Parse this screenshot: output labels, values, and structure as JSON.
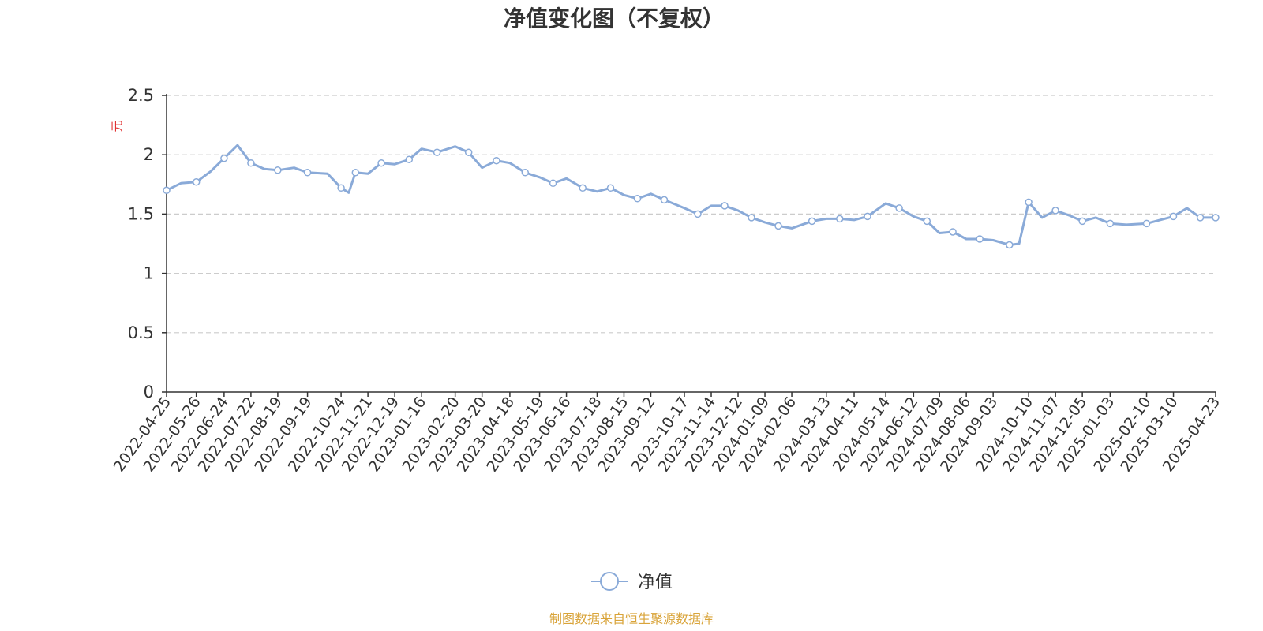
{
  "chart_data": {
    "type": "line",
    "title": "净值变化图（不复权）",
    "ylabel": "元",
    "xlabel": "",
    "ylim": [
      0,
      2.5
    ],
    "yticks": [
      "0",
      "0.5",
      "1",
      "1.5",
      "2",
      "2.5"
    ],
    "grid": true,
    "legend_position": "bottom-center",
    "x_tick_labels": [
      "2022-04-25",
      "2022-05-26",
      "2022-06-24",
      "2022-07-22",
      "2022-08-19",
      "2022-09-19",
      "2022-10-24",
      "2022-11-21",
      "2022-12-19",
      "2023-01-16",
      "2023-02-20",
      "2023-03-20",
      "2023-04-18",
      "2023-05-19",
      "2023-06-16",
      "2023-07-18",
      "2023-08-15",
      "2023-09-12",
      "2023-10-17",
      "2023-11-14",
      "2023-12-12",
      "2024-01-09",
      "2024-02-06",
      "2024-03-13",
      "2024-04-11",
      "2024-05-14",
      "2024-06-12",
      "2024-07-09",
      "2024-08-06",
      "2024-09-03",
      "2024-10-10",
      "2024-11-07",
      "2024-12-05",
      "2025-01-03",
      "2025-02-10",
      "2025-03-10",
      "2025-04-23"
    ],
    "series": [
      {
        "name": "净值",
        "color": "#8aaad8",
        "x": [
          "2022-04-25",
          "2022-05-10",
          "2022-05-26",
          "2022-06-10",
          "2022-06-24",
          "2022-07-08",
          "2022-07-22",
          "2022-08-05",
          "2022-08-19",
          "2022-09-05",
          "2022-09-19",
          "2022-10-10",
          "2022-10-24",
          "2022-11-01",
          "2022-11-08",
          "2022-11-21",
          "2022-12-05",
          "2022-12-19",
          "2023-01-03",
          "2023-01-16",
          "2023-02-01",
          "2023-02-20",
          "2023-03-06",
          "2023-03-20",
          "2023-04-04",
          "2023-04-18",
          "2023-05-04",
          "2023-05-19",
          "2023-06-02",
          "2023-06-16",
          "2023-07-03",
          "2023-07-18",
          "2023-08-01",
          "2023-08-15",
          "2023-08-29",
          "2023-09-12",
          "2023-09-26",
          "2023-10-17",
          "2023-10-31",
          "2023-11-14",
          "2023-11-28",
          "2023-12-12",
          "2023-12-26",
          "2024-01-09",
          "2024-01-23",
          "2024-02-06",
          "2024-02-27",
          "2024-03-13",
          "2024-03-27",
          "2024-04-11",
          "2024-04-25",
          "2024-05-14",
          "2024-05-28",
          "2024-06-12",
          "2024-06-26",
          "2024-07-09",
          "2024-07-23",
          "2024-08-06",
          "2024-08-20",
          "2024-09-03",
          "2024-09-20",
          "2024-09-30",
          "2024-10-10",
          "2024-10-24",
          "2024-11-07",
          "2024-11-21",
          "2024-12-05",
          "2024-12-19",
          "2025-01-03",
          "2025-01-20",
          "2025-02-10",
          "2025-02-24",
          "2025-03-10",
          "2025-03-24",
          "2025-04-07",
          "2025-04-23"
        ],
        "values": [
          1.7,
          1.76,
          1.77,
          1.86,
          1.97,
          2.08,
          1.93,
          1.88,
          1.87,
          1.89,
          1.85,
          1.84,
          1.72,
          1.68,
          1.85,
          1.84,
          1.93,
          1.92,
          1.96,
          2.05,
          2.02,
          2.07,
          2.02,
          1.89,
          1.95,
          1.93,
          1.85,
          1.81,
          1.76,
          1.8,
          1.72,
          1.69,
          1.72,
          1.66,
          1.63,
          1.67,
          1.62,
          1.55,
          1.5,
          1.57,
          1.57,
          1.53,
          1.47,
          1.43,
          1.4,
          1.38,
          1.44,
          1.46,
          1.46,
          1.45,
          1.48,
          1.59,
          1.55,
          1.48,
          1.44,
          1.34,
          1.35,
          1.29,
          1.29,
          1.28,
          1.24,
          1.25,
          1.6,
          1.47,
          1.53,
          1.49,
          1.44,
          1.47,
          1.42,
          1.41,
          1.42,
          1.45,
          1.48,
          1.55,
          1.47,
          1.47
        ]
      }
    ]
  },
  "legend": {
    "label": "净值"
  },
  "source": {
    "text": "制图数据来自恒生聚源数据库",
    "color": "#d9a43a"
  },
  "colors": {
    "axis": "#333333",
    "grid": "#cccccc",
    "unit_label": "#e03030",
    "marker_fill": "#ffffff"
  }
}
